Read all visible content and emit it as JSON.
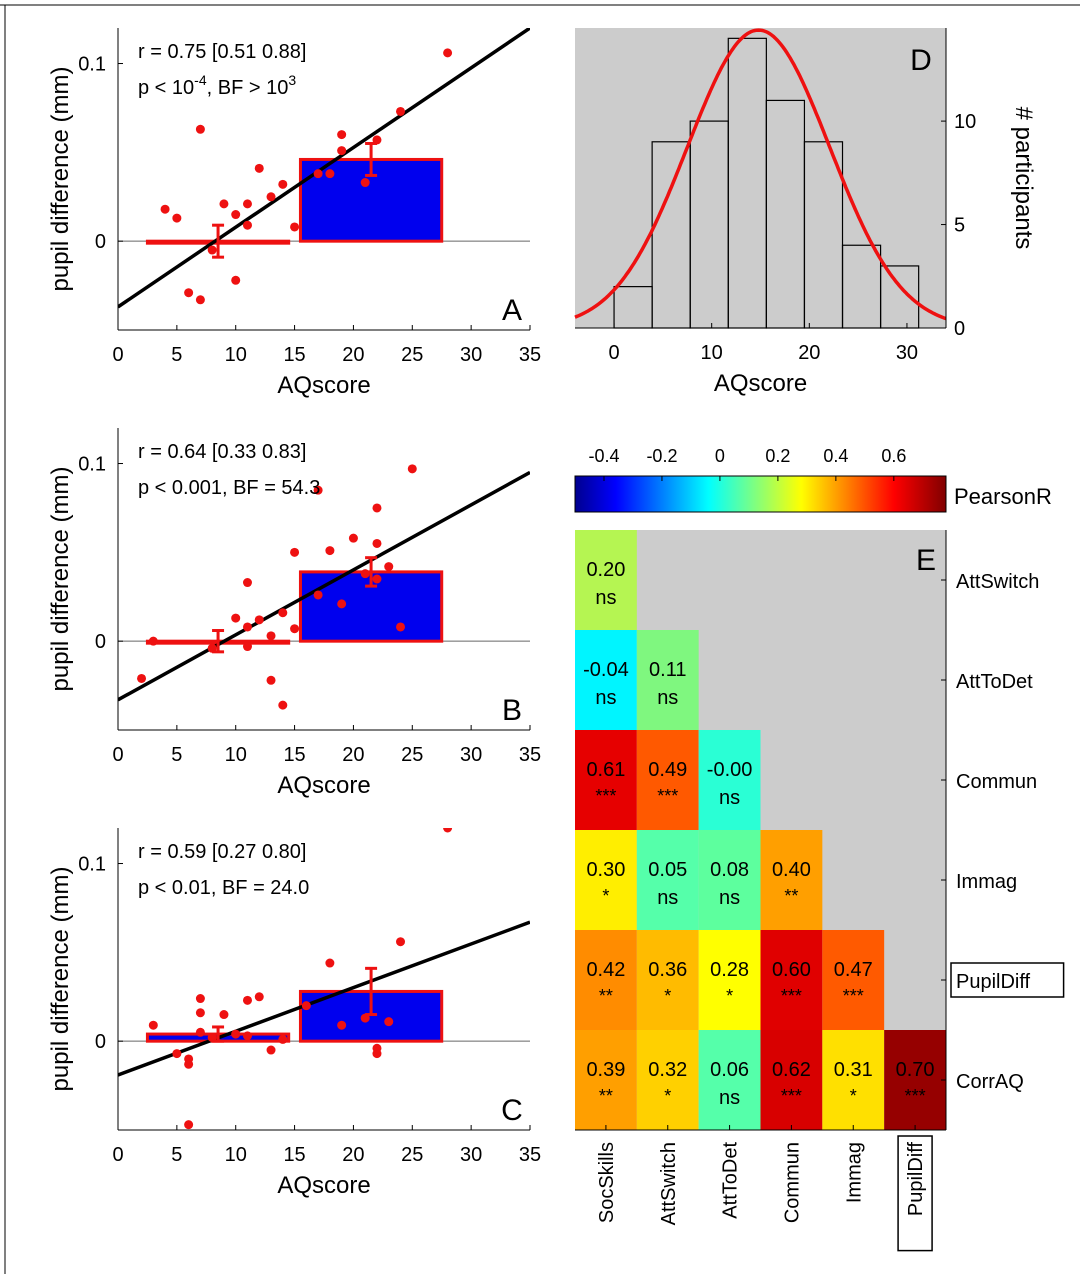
{
  "scatter_panels": [
    {
      "id": "A",
      "letter": "A",
      "stat_line1": "r = 0.75 [0.51 0.88]",
      "stat_line2": {
        "a": "p < 10",
        "sup1": "-4",
        "b": ", BF > 10",
        "sup2": "3"
      },
      "xlabel": "AQscore",
      "ylabel": "pupil difference (mm)",
      "xlim": [
        0,
        35
      ],
      "ylim": [
        -0.05,
        0.12
      ],
      "xticks": [
        "0",
        "5",
        "10",
        "15",
        "20",
        "25",
        "30",
        "35"
      ],
      "yticks": [
        {
          "v": 0,
          "label": "0"
        },
        {
          "v": 0.1,
          "label": "0.1"
        }
      ],
      "bars": [
        {
          "x0": 2.5,
          "x1": 14.5,
          "value": 0.0,
          "err": 0.009,
          "ex": 8.5
        },
        {
          "x0": 15.5,
          "x1": 27.5,
          "value": 0.046,
          "err": 0.009,
          "ex": 21.5
        }
      ],
      "fit_line": [
        [
          0,
          -0.037
        ],
        [
          35,
          0.12
        ]
      ],
      "points": [
        [
          4,
          0.018
        ],
        [
          5,
          0.013
        ],
        [
          6,
          -0.029
        ],
        [
          7,
          0.063
        ],
        [
          7,
          -0.033
        ],
        [
          8,
          -0.005
        ],
        [
          9,
          0.021
        ],
        [
          10,
          0.015
        ],
        [
          10,
          -0.022
        ],
        [
          11,
          0.021
        ],
        [
          11,
          0.009
        ],
        [
          12,
          0.041
        ],
        [
          13,
          0.025
        ],
        [
          14,
          0.032
        ],
        [
          15,
          0.008
        ],
        [
          17,
          0.038
        ],
        [
          18,
          0.038
        ],
        [
          19,
          0.051
        ],
        [
          19,
          0.06
        ],
        [
          21,
          0.033
        ],
        [
          22,
          0.057
        ],
        [
          24,
          0.073
        ],
        [
          28,
          0.106
        ]
      ]
    },
    {
      "id": "B",
      "letter": "B",
      "stat_line1": "r = 0.64 [0.33 0.83]",
      "stat_line2": {
        "a": "p < 0.001, BF = 54.3"
      },
      "xlabel": "AQscore",
      "ylabel": "pupil difference (mm)",
      "xlim": [
        0,
        35
      ],
      "ylim": [
        -0.05,
        0.12
      ],
      "xticks": [
        "0",
        "5",
        "10",
        "15",
        "20",
        "25",
        "30",
        "35"
      ],
      "yticks": [
        {
          "v": 0,
          "label": "0"
        },
        {
          "v": 0.1,
          "label": "0.1"
        }
      ],
      "bars": [
        {
          "x0": 2.5,
          "x1": 14.5,
          "value": 0.0,
          "err": 0.006,
          "ex": 8.5
        },
        {
          "x0": 15.5,
          "x1": 27.5,
          "value": 0.039,
          "err": 0.008,
          "ex": 21.5
        }
      ],
      "fit_line": [
        [
          0,
          -0.033
        ],
        [
          35,
          0.095
        ]
      ],
      "points": [
        [
          2,
          -0.021
        ],
        [
          3,
          0.0
        ],
        [
          8,
          -0.004
        ],
        [
          10,
          0.013
        ],
        [
          11,
          0.033
        ],
        [
          11,
          -0.003
        ],
        [
          11,
          0.008
        ],
        [
          12,
          0.012
        ],
        [
          13,
          -0.022
        ],
        [
          13,
          0.003
        ],
        [
          14,
          0.016
        ],
        [
          14,
          -0.036
        ],
        [
          15,
          0.007
        ],
        [
          15,
          0.05
        ],
        [
          17,
          0.085
        ],
        [
          17,
          0.026
        ],
        [
          18,
          0.051
        ],
        [
          19,
          0.021
        ],
        [
          20,
          0.058
        ],
        [
          21,
          0.038
        ],
        [
          22,
          0.055
        ],
        [
          22,
          0.075
        ],
        [
          22,
          0.035
        ],
        [
          23,
          0.042
        ],
        [
          24,
          0.008
        ],
        [
          25,
          0.097
        ]
      ]
    },
    {
      "id": "C",
      "letter": "C",
      "stat_line1": "r = 0.59 [0.27 0.80]",
      "stat_line2": {
        "a": "p < 0.01, BF = 24.0"
      },
      "xlabel": "AQscore",
      "ylabel": "pupil difference (mm)",
      "xlim": [
        0,
        35
      ],
      "ylim": [
        -0.05,
        0.12
      ],
      "xticks": [
        "0",
        "5",
        "10",
        "15",
        "20",
        "25",
        "30",
        "35"
      ],
      "yticks": [
        {
          "v": 0,
          "label": "0"
        },
        {
          "v": 0.1,
          "label": "0.1"
        }
      ],
      "bars": [
        {
          "x0": 2.5,
          "x1": 14.5,
          "value": 0.004,
          "err": 0.004,
          "ex": 8.5
        },
        {
          "x0": 15.5,
          "x1": 27.5,
          "value": 0.028,
          "err": 0.013,
          "ex": 21.5
        }
      ],
      "fit_line": [
        [
          0,
          -0.019
        ],
        [
          35,
          0.067
        ]
      ],
      "points": [
        [
          3,
          0.009
        ],
        [
          5,
          -0.007
        ],
        [
          6,
          -0.01
        ],
        [
          6,
          -0.013
        ],
        [
          6,
          -0.047
        ],
        [
          7,
          0.024
        ],
        [
          7,
          0.016
        ],
        [
          7,
          0.005
        ],
        [
          8,
          0.002
        ],
        [
          9,
          0.015
        ],
        [
          10,
          0.004
        ],
        [
          11,
          0.023
        ],
        [
          11,
          0.003
        ],
        [
          12,
          0.025
        ],
        [
          13,
          -0.005
        ],
        [
          14,
          0.001
        ],
        [
          16,
          0.02
        ],
        [
          18,
          0.044
        ],
        [
          19,
          0.009
        ],
        [
          21,
          0.013
        ],
        [
          22,
          -0.004
        ],
        [
          22,
          -0.007
        ],
        [
          23,
          0.011
        ],
        [
          24,
          0.056
        ],
        [
          28,
          0.12
        ]
      ]
    }
  ],
  "histogram": {
    "letter": "D",
    "xlabel": "AQscore",
    "ylabel": "# participants",
    "xlim": [
      -4,
      34
    ],
    "ylim": [
      0,
      14.5
    ],
    "xticks": [
      "0",
      "10",
      "20",
      "30"
    ],
    "yticks": [
      "0",
      "5",
      "10"
    ],
    "bin_width": 3.9,
    "bins": [
      {
        "x0": 0,
        "count": 2
      },
      {
        "x0": 3.9,
        "count": 9
      },
      {
        "x0": 7.8,
        "count": 10
      },
      {
        "x0": 11.7,
        "count": 14
      },
      {
        "x0": 15.6,
        "count": 11
      },
      {
        "x0": 19.5,
        "count": 9
      },
      {
        "x0": 23.4,
        "count": 4
      },
      {
        "x0": 27.3,
        "count": 3
      }
    ],
    "fit_curve": {
      "mean": 14.8,
      "sd": 7.3,
      "peak": 14.4
    },
    "colors": {
      "background": "#cccccc",
      "curve": "#ee1111",
      "bar_edge": "#000000"
    }
  },
  "matrix": {
    "letter": "E",
    "colorbar_label": "PearsonR",
    "colorbar_ticks": [
      "-0.4",
      "-0.2",
      "0",
      "0.2",
      "0.4",
      "0.6"
    ],
    "colorbar_range": [
      -0.5,
      0.78
    ],
    "colorbar_tick_values": [
      -0.4,
      -0.2,
      0,
      0.2,
      0.4,
      0.6
    ],
    "row_labels": [
      "AttSwitch",
      "AttToDet",
      "Commun",
      "Immag",
      "PupilDiff",
      "CorrAQ"
    ],
    "row_boxed": [
      false,
      false,
      false,
      false,
      true,
      false
    ],
    "col_labels": [
      "SocSkills",
      "AttSwitch",
      "AttToDet",
      "Commun",
      "Immag",
      "PupilDiff"
    ],
    "col_boxed": [
      false,
      false,
      false,
      false,
      false,
      true
    ],
    "cells": [
      [
        {
          "r": "0.20",
          "sig": "ns",
          "color": "#b5f552"
        }
      ],
      [
        {
          "r": "-0.04",
          "sig": "ns",
          "color": "#00f5ff"
        },
        {
          "r": "0.11",
          "sig": "ns",
          "color": "#7ff77f"
        }
      ],
      [
        {
          "r": "0.61",
          "sig": "***",
          "color": "#e60000"
        },
        {
          "r": "0.49",
          "sig": "***",
          "color": "#ff5900"
        },
        {
          "r": "-0.00",
          "sig": "ns",
          "color": "#2affd5"
        }
      ],
      [
        {
          "r": "0.30",
          "sig": "*",
          "color": "#ffee00"
        },
        {
          "r": "0.05",
          "sig": "ns",
          "color": "#55ffaa"
        },
        {
          "r": "0.08",
          "sig": "ns",
          "color": "#5dff9e"
        },
        {
          "r": "0.40",
          "sig": "**",
          "color": "#ff9f00"
        }
      ],
      [
        {
          "r": "0.42",
          "sig": "**",
          "color": "#ff8c00"
        },
        {
          "r": "0.36",
          "sig": "*",
          "color": "#ffbb00"
        },
        {
          "r": "0.28",
          "sig": "*",
          "color": "#ffff00"
        },
        {
          "r": "0.60",
          "sig": "***",
          "color": "#e00000"
        },
        {
          "r": "0.47",
          "sig": "***",
          "color": "#ff5a00"
        }
      ],
      [
        {
          "r": "0.39",
          "sig": "**",
          "color": "#ff9f00"
        },
        {
          "r": "0.32",
          "sig": "*",
          "color": "#ffd000"
        },
        {
          "r": "0.06",
          "sig": "ns",
          "color": "#55ffaa"
        },
        {
          "r": "0.62",
          "sig": "***",
          "color": "#d80000"
        },
        {
          "r": "0.31",
          "sig": "*",
          "color": "#ffe000"
        },
        {
          "r": "0.70",
          "sig": "***",
          "color": "#960000"
        }
      ]
    ],
    "colors": {
      "background": "#cccccc"
    }
  },
  "colors": {
    "scatter_point": "#ee1111",
    "bar_fill": "#0000ee",
    "bar_edge": "#ee1111",
    "fit_line": "#000000"
  }
}
